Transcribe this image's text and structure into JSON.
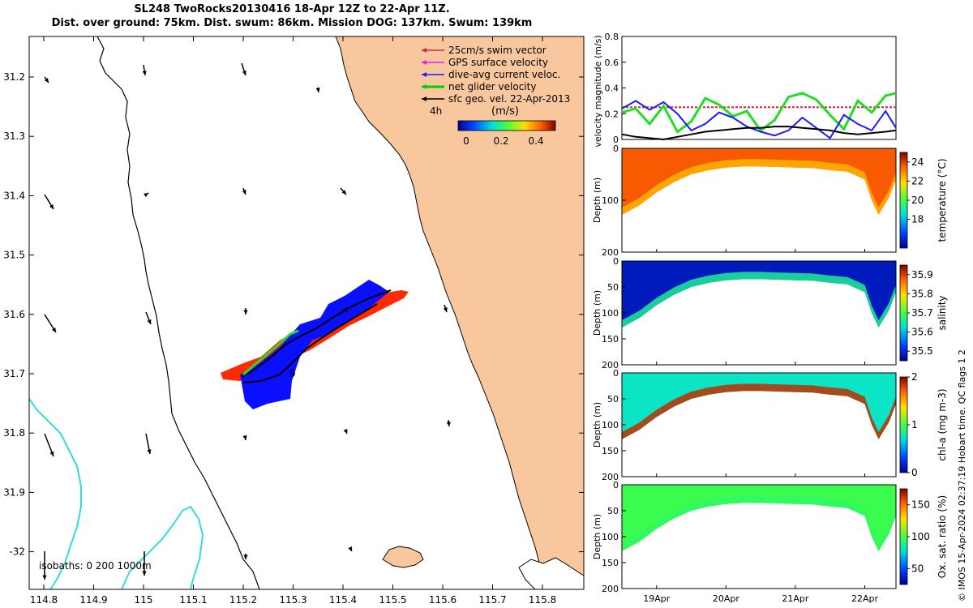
{
  "title": {
    "line1": "SL248 TwoRocks20130416 18-Apr 12Z to 22-Apr 11Z.",
    "line2": "Dist. over ground: 75km. Dist. swum: 86km. Mission DOG: 137km. Swum: 139km"
  },
  "map": {
    "lon_ticks": [
      "114.8",
      "114.9",
      "115",
      "115.1",
      "115.2",
      "115.3",
      "115.4",
      "115.5",
      "115.6",
      "115.7",
      "115.8"
    ],
    "lat_ticks": [
      "31.2",
      "31.3",
      "31.4",
      "31.5",
      "31.6",
      "31.7",
      "31.8",
      "31.9",
      "-32"
    ],
    "legend": [
      {
        "label": "25cm/s swim vector",
        "color": "#e0203a"
      },
      {
        "label": "GPS surface velocity",
        "color": "#e020e0"
      },
      {
        "label": "dive-avg current veloc.",
        "color": "#1a1aff"
      },
      {
        "label": "net glider velocity",
        "color": "#00cc00"
      },
      {
        "label": "sfc geo. vel. 22-Apr-2013",
        "color": "#000000"
      }
    ],
    "colorbar": {
      "label": "(m/s)",
      "ticks": [
        "0",
        "0.2",
        "0.4"
      ]
    },
    "scale_label": "4h",
    "isobaths_label": "isobaths: 0   200  1000m",
    "track_label": "9",
    "colors": {
      "land": "#f9c79d",
      "shallow_isobath": "#33dddd",
      "track_red": "#ff2a00",
      "track_blue": "#0a10ff"
    }
  },
  "chart_data": [
    {
      "type": "line",
      "title": "",
      "ylabel": "velocity magnitude (m/s)",
      "ylim": [
        0,
        0.8
      ],
      "y_ticks": [
        "0",
        "0.2",
        "0.4",
        "0.6",
        "0.8"
      ],
      "x": [
        18.5,
        18.7,
        18.9,
        19.1,
        19.3,
        19.5,
        19.7,
        19.9,
        20.1,
        20.3,
        20.5,
        20.7,
        20.9,
        21.1,
        21.3,
        21.5,
        21.7,
        21.9,
        22.1,
        22.3,
        22.45
      ],
      "series": [
        {
          "name": "swim (25cm/s)",
          "color": "#e0203a",
          "values": [
            0.25,
            0.25,
            0.25,
            0.25,
            0.25,
            0.25,
            0.25,
            0.25,
            0.25,
            0.25,
            0.25,
            0.25,
            0.25,
            0.25,
            0.25,
            0.25,
            0.25,
            0.25,
            0.25,
            0.25,
            0.25
          ]
        },
        {
          "name": "net glider velocity",
          "color": "#22dd22",
          "values": [
            0.21,
            0.24,
            0.12,
            0.26,
            0.06,
            0.14,
            0.32,
            0.27,
            0.18,
            0.22,
            0.07,
            0.15,
            0.33,
            0.36,
            0.31,
            0.19,
            0.08,
            0.3,
            0.21,
            0.34,
            0.36
          ]
        },
        {
          "name": "dive-avg current",
          "color": "#1a1aff",
          "values": [
            0.24,
            0.3,
            0.23,
            0.29,
            0.2,
            0.07,
            0.12,
            0.21,
            0.17,
            0.1,
            0.06,
            0.03,
            0.07,
            0.17,
            0.09,
            0.01,
            0.19,
            0.12,
            0.07,
            0.22,
            0.09
          ]
        },
        {
          "name": "sfc geo. vel.",
          "color": "#000000",
          "values": [
            0.04,
            0.02,
            0.01,
            0.0,
            0.02,
            0.04,
            0.06,
            0.07,
            0.08,
            0.09,
            0.09,
            0.1,
            0.1,
            0.09,
            0.08,
            0.07,
            0.05,
            0.04,
            0.05,
            0.06,
            0.07
          ]
        }
      ]
    },
    {
      "type": "heatmap",
      "ylabel": "Depth (m)",
      "cblabel": "temperature (°C)",
      "y_ticks": [
        "0",
        "100",
        "200"
      ],
      "cb_ticks": [
        "24",
        "22",
        "20",
        "18"
      ],
      "cb_range": [
        15,
        25
      ],
      "x": [
        18.5,
        18.75,
        19.0,
        19.25,
        19.5,
        19.75,
        20.0,
        20.25,
        20.5,
        20.75,
        21.0,
        21.25,
        21.5,
        21.75,
        22.0,
        22.1,
        22.2,
        22.35,
        22.45
      ],
      "max_depth": [
        128,
        110,
        85,
        65,
        50,
        42,
        37,
        35,
        35,
        36,
        37,
        38,
        42,
        45,
        60,
        100,
        128,
        95,
        60
      ],
      "surface_value": 23.6,
      "deep_value": 22.4
    },
    {
      "type": "heatmap",
      "ylabel": "Depth (m)",
      "cblabel": "salinity",
      "y_ticks": [
        "0",
        "50",
        "100",
        "150",
        "200"
      ],
      "cb_ticks": [
        "35.9",
        "35.8",
        "35.7",
        "35.6",
        "35.5"
      ],
      "cb_range": [
        35.45,
        35.95
      ],
      "x": [
        18.5,
        18.75,
        19.0,
        19.25,
        19.5,
        19.75,
        20.0,
        20.25,
        20.5,
        20.75,
        21.0,
        21.25,
        21.5,
        21.75,
        22.0,
        22.1,
        22.2,
        22.35,
        22.45
      ],
      "max_depth": [
        128,
        110,
        85,
        65,
        50,
        42,
        37,
        35,
        35,
        36,
        37,
        38,
        42,
        45,
        60,
        100,
        128,
        95,
        60
      ],
      "surface_value": 35.48,
      "deep_value": 35.66
    },
    {
      "type": "heatmap",
      "ylabel": "Depth (m)",
      "cblabel": "chl-a (mg m-3)",
      "y_ticks": [
        "0",
        "50",
        "100",
        "150",
        "200"
      ],
      "cb_ticks": [
        "2",
        "1",
        "0"
      ],
      "cb_range": [
        0,
        2
      ],
      "x": [
        18.5,
        18.75,
        19.0,
        19.25,
        19.5,
        19.75,
        20.0,
        20.25,
        20.5,
        20.75,
        21.0,
        21.25,
        21.5,
        21.75,
        22.0,
        22.1,
        22.2,
        22.35,
        22.45
      ],
      "max_depth": [
        128,
        110,
        85,
        65,
        50,
        42,
        37,
        35,
        35,
        36,
        37,
        38,
        42,
        45,
        60,
        100,
        128,
        95,
        60
      ],
      "surface_value": 0.75,
      "deep_value": 1.85
    },
    {
      "type": "heatmap",
      "ylabel": "Depth (m)",
      "cblabel": "Ox. sat. ratio (%)",
      "y_ticks": [
        "0",
        "50",
        "100",
        "150",
        "200"
      ],
      "cb_ticks": [
        "150",
        "100",
        "50"
      ],
      "cb_range": [
        25,
        175
      ],
      "x": [
        18.5,
        18.75,
        19.0,
        19.25,
        19.5,
        19.75,
        20.0,
        20.25,
        20.5,
        20.75,
        21.0,
        21.25,
        21.5,
        21.75,
        22.0,
        22.1,
        22.2,
        22.35,
        22.45
      ],
      "max_depth": [
        128,
        110,
        85,
        65,
        50,
        42,
        37,
        35,
        35,
        36,
        37,
        38,
        42,
        45,
        60,
        100,
        128,
        95,
        60
      ],
      "surface_value": 98,
      "deep_value": 95
    }
  ],
  "time_axis": {
    "ticks": [
      "19Apr",
      "20Apr",
      "21Apr",
      "22Apr"
    ],
    "tick_days": [
      19,
      20,
      21,
      22
    ],
    "xlim": [
      18.5,
      22.45
    ]
  },
  "credit": "© IMOS 15-Apr-2024 02:37:19 Hobart time. QC flags 1  2"
}
